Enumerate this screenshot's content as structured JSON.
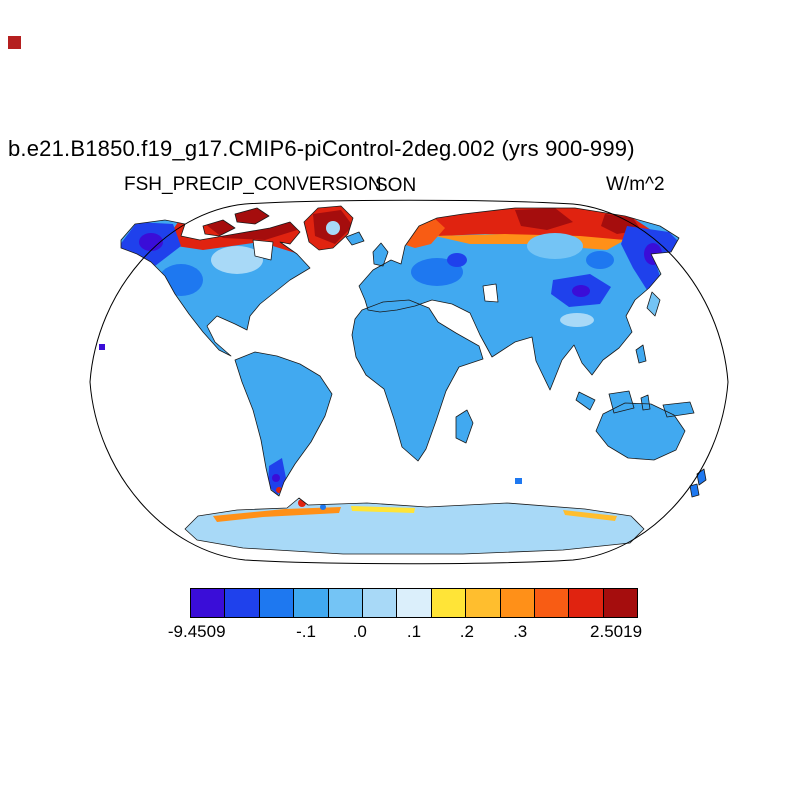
{
  "title": "b.e21.B1850.f19_g17.CMIP6-piControl-2deg.002 (yrs 900-999)",
  "header": {
    "variable": "FSH_PRECIP_CONVERSION",
    "season": "SON",
    "units": "W/m^2"
  },
  "corner_marker_color": "#b51f1f",
  "palette": {
    "indigo": "#3a0dd8",
    "blue_dark": "#1f41ec",
    "blue_mid": "#1e78f0",
    "land": "#41a9f0",
    "sky_light": "#74c4f5",
    "pale": "#a8d9f7",
    "very_pale": "#dbeffb",
    "yellow": "#ffe437",
    "amber": "#ffbe2e",
    "orange": "#ff9018",
    "red_orange": "#f85c14",
    "red": "#e02310",
    "dark_red": "#a50d0d",
    "coastline": "#1a1a1a",
    "map_outline": "#000000",
    "corner": "#b51f1f"
  },
  "chart_data": {
    "type": "heatmap",
    "title": "b.e21.B1850.f19_g17.CMIP6-piControl-2deg.002 (yrs 900-999)",
    "variable": "FSH_PRECIP_CONVERSION",
    "season": "SON",
    "units": "W/m^2",
    "projection": "Robinson world map, filled-contour anomaly field over land",
    "colorbar": {
      "orientation": "horizontal",
      "colors": [
        "#3a0dd8",
        "#1f41ec",
        "#1e78f0",
        "#41a9f0",
        "#74c4f5",
        "#a8d9f7",
        "#dbeffb",
        "#ffe437",
        "#ffbe2e",
        "#ff9018",
        "#f85c14",
        "#e02310",
        "#a50d0d"
      ],
      "tick_labels": [
        {
          "text": "-9.4509",
          "pos": 0.015
        },
        {
          "text": "-.1",
          "pos": 0.259
        },
        {
          "text": ".0",
          "pos": 0.379
        },
        {
          "text": ".1",
          "pos": 0.5
        },
        {
          "text": ".2",
          "pos": 0.618
        },
        {
          "text": ".3",
          "pos": 0.737
        },
        {
          "text": "2.5019",
          "pos": 0.951
        }
      ],
      "labeled_levels": [
        -9.4509,
        -0.1,
        0.0,
        0.1,
        0.2,
        0.3,
        2.5019
      ],
      "data_min": -9.4509,
      "data_max": 2.5019
    },
    "regions": [
      {
        "region": "Arctic Canada, Canadian Archipelago and Greenland coasts",
        "approx_value": "+0.3 to +2.5 (dark red)"
      },
      {
        "region": "Northern Siberian coast and Scandinavia",
        "approx_value": "+0.2 to +2.5 (orange to red)"
      },
      {
        "region": "Alaska and northwestern Canada",
        "approx_value": "strongly negative, down to -9.45 (dark blue / indigo)"
      },
      {
        "region": "Northeastern Siberia (Chukotka, Kamchatka)",
        "approx_value": "strongly negative (dark blue / indigo)"
      },
      {
        "region": "Central Asia interior patch",
        "approx_value": "negative (dark blue)"
      },
      {
        "region": "Europe and western Russia",
        "approx_value": "-0.1 to 0 (medium blue)"
      },
      {
        "region": "Most tropical and mid-latitude land",
        "approx_value": "near zero (light blue)"
      },
      {
        "region": "Antarctica interior",
        "approx_value": "near zero (pale blue)"
      },
      {
        "region": "Antarctic coastal fringe patches",
        "approx_value": "+0.1 to +0.3 (yellow / orange)"
      },
      {
        "region": "Oceans",
        "approx_value": "masked (white)"
      }
    ]
  }
}
